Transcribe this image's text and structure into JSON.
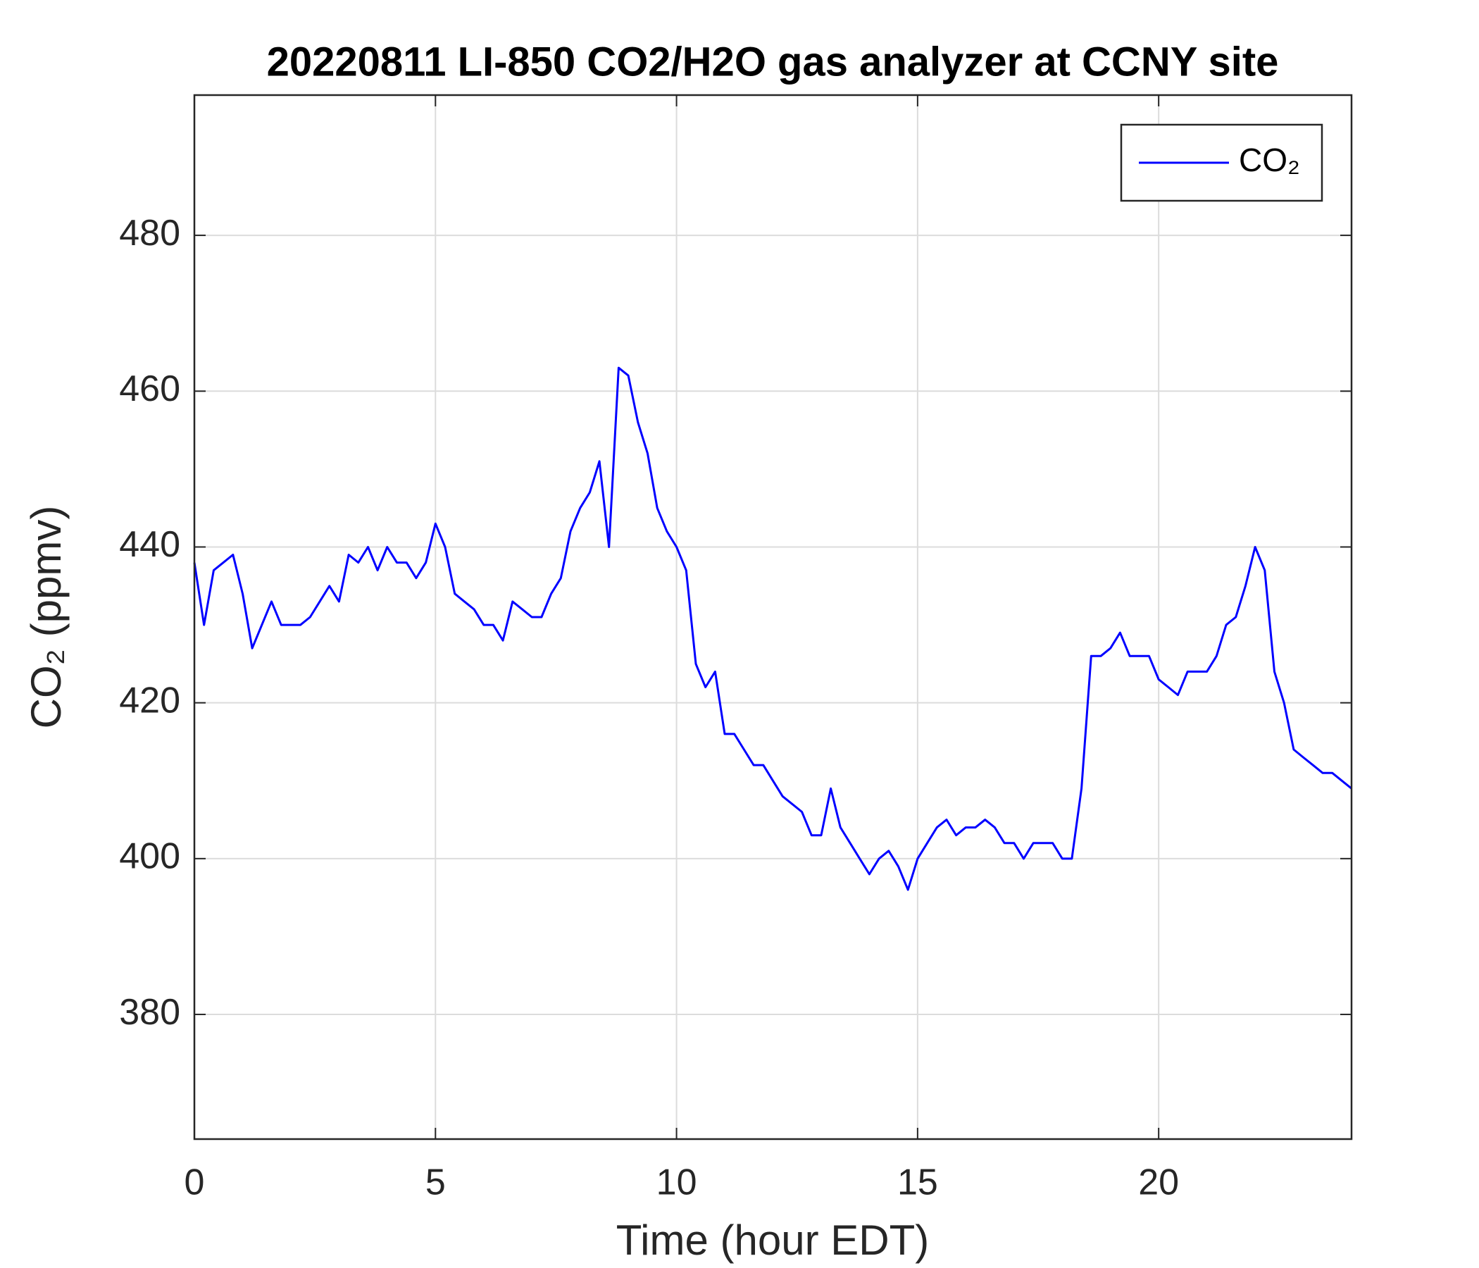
{
  "chart_data": {
    "type": "line",
    "title": "20220811 LI-850 CO2/H2O gas analyzer at CCNY site",
    "xlabel": "Time (hour EDT)",
    "ylabel": "CO₂ (ppmv)",
    "xlim": [
      0,
      24
    ],
    "ylim": [
      364,
      498
    ],
    "xticks": [
      0,
      5,
      10,
      15,
      20
    ],
    "yticks": [
      380,
      400,
      420,
      440,
      460,
      480
    ],
    "grid": true,
    "legend": "top-right",
    "x": [
      0,
      0.2,
      0.4,
      0.6,
      0.8,
      1.0,
      1.2,
      1.4,
      1.6,
      1.8,
      2.0,
      2.2,
      2.4,
      2.6,
      2.8,
      3.0,
      3.2,
      3.4,
      3.6,
      3.8,
      4.0,
      4.2,
      4.4,
      4.6,
      4.8,
      5.0,
      5.2,
      5.4,
      5.6,
      5.8,
      6.0,
      6.2,
      6.4,
      6.6,
      6.8,
      7.0,
      7.2,
      7.4,
      7.6,
      7.8,
      8.0,
      8.2,
      8.4,
      8.6,
      8.8,
      9.0,
      9.2,
      9.4,
      9.6,
      9.8,
      10.0,
      10.2,
      10.4,
      10.6,
      10.8,
      11.0,
      11.2,
      11.4,
      11.6,
      11.8,
      12.0,
      12.2,
      12.4,
      12.6,
      12.8,
      13.0,
      13.2,
      13.4,
      13.6,
      13.8,
      14.0,
      14.2,
      14.4,
      14.6,
      14.8,
      15.0,
      15.2,
      15.4,
      15.6,
      15.8,
      16.0,
      16.2,
      16.4,
      16.6,
      16.8,
      17.0,
      17.2,
      17.4,
      17.6,
      17.8,
      18.0,
      18.2,
      18.4,
      18.6,
      18.8,
      19.0,
      19.2,
      19.4,
      19.6,
      19.8,
      20.0,
      20.2,
      20.4,
      20.6,
      20.8,
      21.0,
      21.2,
      21.4,
      21.6,
      21.8,
      22.0,
      22.2,
      22.4,
      22.6,
      22.8,
      23.0,
      23.2,
      23.4,
      23.6,
      23.8,
      24.0
    ],
    "series": [
      {
        "name": "CO₂",
        "color": "#0000ff",
        "values": [
          438,
          430,
          437,
          438,
          439,
          434,
          427,
          430,
          433,
          430,
          430,
          430,
          431,
          433,
          435,
          433,
          439,
          438,
          440,
          437,
          440,
          438,
          438,
          436,
          438,
          443,
          440,
          434,
          433,
          432,
          430,
          430,
          428,
          433,
          432,
          431,
          431,
          434,
          436,
          442,
          445,
          447,
          451,
          440,
          463,
          462,
          456,
          452,
          445,
          442,
          440,
          437,
          425,
          422,
          424,
          416,
          416,
          414,
          412,
          412,
          410,
          408,
          407,
          406,
          403,
          403,
          409,
          404,
          402,
          400,
          398,
          400,
          401,
          399,
          396,
          400,
          402,
          404,
          405,
          403,
          404,
          404,
          405,
          404,
          402,
          402,
          400,
          402,
          402,
          402,
          400,
          400,
          409,
          426,
          426,
          427,
          429,
          426,
          426,
          426,
          423,
          422,
          421,
          424,
          424,
          424,
          426,
          430,
          431,
          435,
          440,
          437,
          424,
          420,
          414,
          413,
          412,
          411,
          411,
          410,
          409
        ]
      }
    ]
  }
}
